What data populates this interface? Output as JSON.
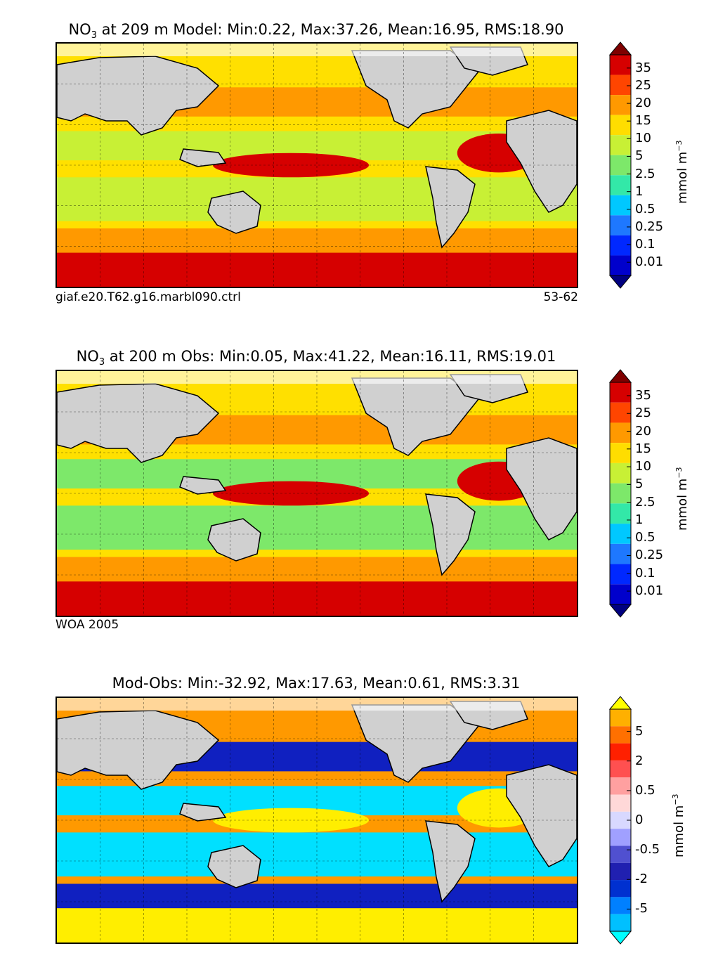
{
  "panels": [
    {
      "title_main": "NO",
      "title_sub": "3",
      "title_rest": " at 209 m Model: Min:0.22, Max:37.26, Mean:16.95, RMS:18.90",
      "caption_left": "giaf.e20.T62.g16.marbl090.ctrl",
      "caption_right": "53-62",
      "colorbar": {
        "labels": [
          "35",
          "25",
          "20",
          "15",
          "10",
          "5",
          "2.5",
          "1",
          "0.5",
          "0.25",
          "0.1",
          "0.01"
        ],
        "colors": [
          "#7f0000",
          "#d60000",
          "#ff4500",
          "#ff9900",
          "#ffdd00",
          "#c8f035",
          "#7de86a",
          "#33e8a8",
          "#00c8ff",
          "#1e78ff",
          "#0028ff",
          "#0000cc",
          "#000080"
        ],
        "units": "mmol m",
        "units_sup": "−3"
      },
      "map_colors": {
        "ocean": "#ffe000",
        "band1": "#c8f035",
        "band2": "#ff9900",
        "band3": "#d60000",
        "land": "#d0d0d0"
      }
    },
    {
      "title_main": "NO",
      "title_sub": "3",
      "title_rest": " at 200 m Obs: Min:0.05, Max:41.22, Mean:16.11, RMS:19.01",
      "caption_left": "WOA 2005",
      "caption_right": "",
      "colorbar": {
        "labels": [
          "35",
          "25",
          "20",
          "15",
          "10",
          "5",
          "2.5",
          "1",
          "0.5",
          "0.25",
          "0.1",
          "0.01"
        ],
        "colors": [
          "#7f0000",
          "#d60000",
          "#ff4500",
          "#ff9900",
          "#ffdd00",
          "#c8f035",
          "#7de86a",
          "#33e8a8",
          "#00c8ff",
          "#1e78ff",
          "#0028ff",
          "#0000cc",
          "#000080"
        ],
        "units": "mmol m",
        "units_sup": "−3"
      },
      "map_colors": {
        "ocean": "#ffe000",
        "band1": "#7de86a",
        "band2": "#ff9900",
        "band3": "#d60000",
        "land": "#d0d0d0"
      }
    },
    {
      "title_main": "Mod-Obs: Min:-32.92, Max:17.63, Mean:0.61, RMS:3.31",
      "title_sub": "",
      "title_rest": "",
      "caption_left": "",
      "caption_right": "",
      "colorbar": {
        "labels": [
          "5",
          "2",
          "0.5",
          "0",
          "-0.5",
          "-2",
          "-5"
        ],
        "colors": [
          "#ffff00",
          "#ffb000",
          "#ff7000",
          "#ff2000",
          "#ff5050",
          "#ffa0a0",
          "#ffd8d8",
          "#d8d8ff",
          "#a0a0ff",
          "#5050d0",
          "#2020b0",
          "#0030d0",
          "#0080ff",
          "#00c0ff",
          "#00ffff"
        ],
        "units": "mmol m",
        "units_sup": "−3"
      },
      "map_colors": {
        "ocean": "#ff9900",
        "band1": "#00e0ff",
        "band2": "#1020c0",
        "band3": "#ffee00",
        "land": "#d0d0d0"
      }
    }
  ]
}
